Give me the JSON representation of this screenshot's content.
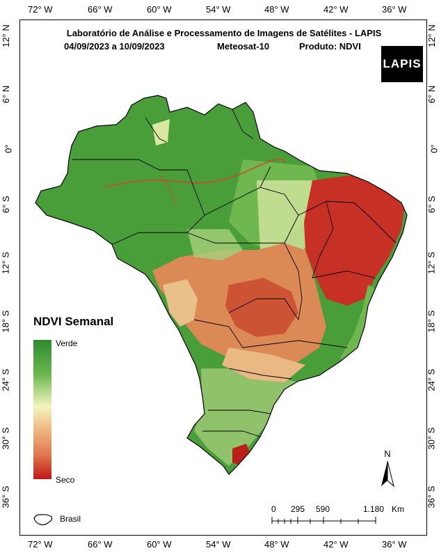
{
  "header": {
    "title": "Laboratório de Análise e Processamento de Imagens de Satélites - LAPIS",
    "date_range": "04/09/2023  a  10/09/2023",
    "satellite": "Meteosat-10",
    "product": "Produto: NDVI"
  },
  "logo": {
    "text": "LAPIS"
  },
  "axes": {
    "longitude_labels": [
      "72° W",
      "66° W",
      "60° W",
      "54° W",
      "48° W",
      "42° W",
      "36° W"
    ],
    "latitude_labels": [
      "12° N",
      "6° N",
      "0°",
      "6° S",
      "12° S",
      "18° S",
      "24° S",
      "30° S",
      "36° S"
    ]
  },
  "legend": {
    "title": "NDVI Semanal",
    "top_label": "Verde",
    "bottom_label": "Seco",
    "colors": {
      "high": "#2e8b2e",
      "mid": "#f5f5c0",
      "low": "#c01818"
    }
  },
  "scale_bar": {
    "ticks": [
      "0",
      "295",
      "590",
      "1.180"
    ],
    "unit": "Km"
  },
  "north_arrow": {
    "label": "N"
  },
  "inset_legend": {
    "label": "Brasil"
  }
}
